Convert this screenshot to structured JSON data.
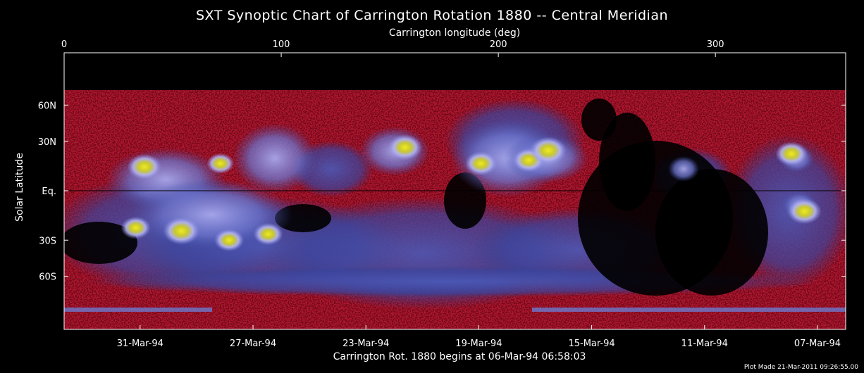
{
  "chart_data": {
    "type": "heatmap",
    "title": "SXT Synoptic Chart of Carrington Rotation 1880 -- Central Meridian",
    "top_axis": {
      "label": "Carrington longitude (deg)",
      "range": [
        0,
        360
      ],
      "ticks": [
        {
          "value": 0,
          "label": "0"
        },
        {
          "value": 100,
          "label": "100"
        },
        {
          "value": 200,
          "label": "200"
        },
        {
          "value": 300,
          "label": "300"
        }
      ]
    },
    "y_axis": {
      "label": "Solar Latitude",
      "ticks": [
        {
          "value": 60,
          "label": "60N"
        },
        {
          "value": 30,
          "label": "30N"
        },
        {
          "value": 0,
          "label": "Eq."
        },
        {
          "value": -30,
          "label": "30S"
        },
        {
          "value": -60,
          "label": "60S"
        }
      ]
    },
    "bottom_axis": {
      "ticks": [
        {
          "longitude": 35,
          "label": "31-Mar-94"
        },
        {
          "longitude": 87,
          "label": "27-Mar-94"
        },
        {
          "longitude": 139,
          "label": "23-Mar-94"
        },
        {
          "longitude": 191,
          "label": "19-Mar-94"
        },
        {
          "longitude": 243,
          "label": "15-Mar-94"
        },
        {
          "longitude": 295,
          "label": "11-Mar-94"
        },
        {
          "longitude": 347,
          "label": "07-Mar-94"
        }
      ]
    },
    "subtitle": "Carrington Rot. 1880 begins at 06-Mar-94 06:58:03",
    "footnote": "Plot Made 21-Mar-2011 09:26:55.00",
    "colors": {
      "background": "#000000",
      "quiet": "#cc1a3a",
      "mid": "#3a4ca8",
      "bright": "#b4b4f0",
      "active": "#e8e010"
    },
    "active_regions": [
      {
        "lon": 37,
        "lat": 14,
        "strength": 0.9
      },
      {
        "lon": 72,
        "lat": 16,
        "strength": 0.6
      },
      {
        "lon": 33,
        "lat": -22,
        "strength": 0.7
      },
      {
        "lon": 54,
        "lat": -24,
        "strength": 1.0
      },
      {
        "lon": 76,
        "lat": -30,
        "strength": 0.7
      },
      {
        "lon": 94,
        "lat": -26,
        "strength": 0.7
      },
      {
        "lon": 157,
        "lat": 26,
        "strength": 0.9
      },
      {
        "lon": 192,
        "lat": 16,
        "strength": 0.8
      },
      {
        "lon": 214,
        "lat": 18,
        "strength": 0.8
      },
      {
        "lon": 223,
        "lat": 24,
        "strength": 1.0
      },
      {
        "lon": 335,
        "lat": 22,
        "strength": 0.8
      },
      {
        "lon": 341,
        "lat": -12,
        "strength": 0.9
      }
    ]
  }
}
